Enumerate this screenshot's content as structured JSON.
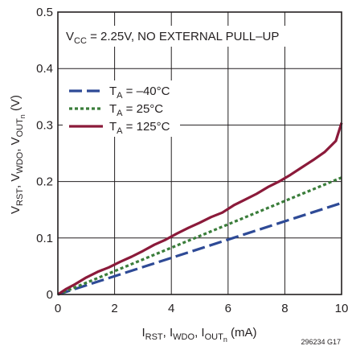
{
  "chart_data": {
    "type": "line",
    "annotation": {
      "prefix": "V",
      "sub": "CC",
      "rest": " = 2.25V, NO EXTERNAL PULL–UP"
    },
    "xlabel": {
      "p1": "I",
      "s1": "RST",
      "sep1": ", I",
      "s2": "WDO",
      "sep2": ", I",
      "s3": "OUT",
      "s3n": "n",
      "tail": " (mA)"
    },
    "ylabel": {
      "p1": "V",
      "s1": "RST",
      "sep1": ", V",
      "s2": "WDO",
      "sep2": ", V",
      "s3": "OUT",
      "s3n": "n",
      "tail": " (V)"
    },
    "xlim": [
      0,
      10
    ],
    "ylim": [
      0,
      0.5
    ],
    "x_ticks": [
      "0",
      "2",
      "4",
      "6",
      "8",
      "10"
    ],
    "y_ticks": [
      "0",
      "0.1",
      "0.2",
      "0.3",
      "0.4",
      "0.5"
    ],
    "grid": true,
    "legend_position": "upper-left",
    "footnote": "296234 G17",
    "series": [
      {
        "name": {
          "p": "T",
          "s": "A",
          "rest": " = –40°C"
        },
        "style": "dashed",
        "color": "#2e4a96",
        "x": [
          0,
          10
        ],
        "y": [
          0,
          0.162
        ]
      },
      {
        "name": {
          "p": "T",
          "s": "A",
          "rest": " = 25°C"
        },
        "style": "dotted",
        "color": "#3a7d3a",
        "x": [
          0,
          10
        ],
        "y": [
          0,
          0.207
        ]
      },
      {
        "name": {
          "p": "T",
          "s": "A",
          "rest": " = 125°C"
        },
        "style": "solid",
        "color": "#8b1a3a",
        "x": [
          0,
          0.3,
          0.6,
          1.0,
          1.4,
          1.8,
          2.2,
          2.6,
          3.0,
          3.4,
          3.8,
          4.2,
          4.6,
          5.0,
          5.4,
          5.8,
          6.2,
          6.6,
          7.0,
          7.4,
          7.8,
          8.2,
          8.6,
          9.0,
          9.4,
          9.8,
          10.0
        ],
        "y": [
          0,
          0.01,
          0.018,
          0.03,
          0.04,
          0.048,
          0.058,
          0.067,
          0.077,
          0.088,
          0.097,
          0.108,
          0.118,
          0.127,
          0.137,
          0.145,
          0.158,
          0.168,
          0.178,
          0.19,
          0.2,
          0.212,
          0.225,
          0.238,
          0.252,
          0.272,
          0.304
        ]
      }
    ]
  }
}
